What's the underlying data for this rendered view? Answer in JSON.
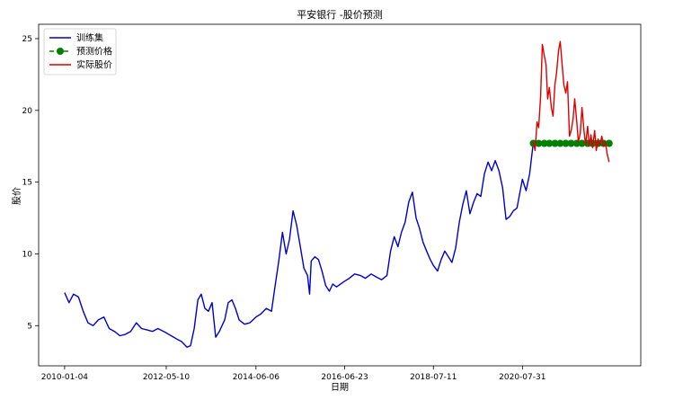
{
  "chart_data": {
    "type": "line",
    "title": "平安银行 -股价预测",
    "xlabel": "日期",
    "ylabel": "股价",
    "x_tick_labels": [
      "2010-01-04",
      "2012-05-10",
      "2014-06-06",
      "2016-06-23",
      "2018-07-11",
      "2020-07-31"
    ],
    "y_ticks": [
      5,
      10,
      15,
      20,
      25
    ],
    "xlim": [
      "2009-05-30",
      "2023-04-25"
    ],
    "ylim": [
      2.2,
      26.0
    ],
    "grid": false,
    "legend_position": "top-left",
    "series": [
      {
        "name": "训练集",
        "color": "#0000cc",
        "style": "line",
        "points": [
          [
            "2010-01-04",
            7.3
          ],
          [
            "2010-02-10",
            6.6
          ],
          [
            "2010-03-20",
            7.2
          ],
          [
            "2010-05-01",
            7.0
          ],
          [
            "2010-06-10",
            6.0
          ],
          [
            "2010-07-20",
            5.2
          ],
          [
            "2010-09-01",
            5.0
          ],
          [
            "2010-10-15",
            5.4
          ],
          [
            "2010-12-01",
            5.6
          ],
          [
            "2011-01-15",
            4.8
          ],
          [
            "2011-03-01",
            4.6
          ],
          [
            "2011-04-15",
            4.3
          ],
          [
            "2011-06-01",
            4.4
          ],
          [
            "2011-07-15",
            4.6
          ],
          [
            "2011-09-01",
            5.2
          ],
          [
            "2011-10-15",
            4.8
          ],
          [
            "2011-12-01",
            4.7
          ],
          [
            "2012-01-15",
            4.6
          ],
          [
            "2012-03-01",
            4.8
          ],
          [
            "2012-05-10",
            4.5
          ],
          [
            "2012-06-20",
            4.3
          ],
          [
            "2012-08-01",
            4.1
          ],
          [
            "2012-09-15",
            3.9
          ],
          [
            "2012-11-01",
            3.5
          ],
          [
            "2012-12-01",
            3.6
          ],
          [
            "2013-01-01",
            4.8
          ],
          [
            "2013-02-01",
            6.8
          ],
          [
            "2013-03-01",
            7.2
          ],
          [
            "2013-04-01",
            6.2
          ],
          [
            "2013-05-01",
            6.0
          ],
          [
            "2013-06-01",
            6.6
          ],
          [
            "2013-07-01",
            4.2
          ],
          [
            "2013-08-01",
            4.6
          ],
          [
            "2013-09-15",
            5.4
          ],
          [
            "2013-10-15",
            6.6
          ],
          [
            "2013-11-15",
            6.8
          ],
          [
            "2013-12-15",
            6.2
          ],
          [
            "2014-01-15",
            5.4
          ],
          [
            "2014-03-01",
            5.1
          ],
          [
            "2014-04-15",
            5.2
          ],
          [
            "2014-06-06",
            5.6
          ],
          [
            "2014-07-15",
            5.8
          ],
          [
            "2014-09-01",
            6.2
          ],
          [
            "2014-10-15",
            6.0
          ],
          [
            "2014-11-15",
            7.8
          ],
          [
            "2014-12-15",
            9.5
          ],
          [
            "2015-01-15",
            11.5
          ],
          [
            "2015-02-15",
            10.0
          ],
          [
            "2015-03-15",
            11.0
          ],
          [
            "2015-04-15",
            13.0
          ],
          [
            "2015-05-15",
            12.0
          ],
          [
            "2015-06-15",
            10.5
          ],
          [
            "2015-07-15",
            9.0
          ],
          [
            "2015-08-15",
            8.5
          ],
          [
            "2015-09-01",
            7.2
          ],
          [
            "2015-09-15",
            9.5
          ],
          [
            "2015-10-15",
            9.8
          ],
          [
            "2015-11-15",
            9.6
          ],
          [
            "2015-12-15",
            8.8
          ],
          [
            "2016-01-15",
            7.8
          ],
          [
            "2016-02-15",
            7.4
          ],
          [
            "2016-03-15",
            7.9
          ],
          [
            "2016-04-15",
            7.7
          ],
          [
            "2016-06-23",
            8.1
          ],
          [
            "2016-08-01",
            8.3
          ],
          [
            "2016-09-15",
            8.6
          ],
          [
            "2016-11-01",
            8.5
          ],
          [
            "2016-12-15",
            8.3
          ],
          [
            "2017-02-01",
            8.6
          ],
          [
            "2017-03-15",
            8.4
          ],
          [
            "2017-05-01",
            8.2
          ],
          [
            "2017-06-15",
            8.5
          ],
          [
            "2017-07-15",
            10.2
          ],
          [
            "2017-08-15",
            11.2
          ],
          [
            "2017-09-15",
            10.5
          ],
          [
            "2017-10-15",
            11.5
          ],
          [
            "2017-11-15",
            12.2
          ],
          [
            "2017-12-15",
            13.6
          ],
          [
            "2018-01-15",
            14.3
          ],
          [
            "2018-02-15",
            12.5
          ],
          [
            "2018-03-15",
            11.8
          ],
          [
            "2018-04-15",
            10.8
          ],
          [
            "2018-05-15",
            10.2
          ],
          [
            "2018-06-15",
            9.6
          ],
          [
            "2018-07-11",
            9.2
          ],
          [
            "2018-08-15",
            8.8
          ],
          [
            "2018-09-15",
            9.6
          ],
          [
            "2018-10-15",
            10.2
          ],
          [
            "2018-11-15",
            9.8
          ],
          [
            "2018-12-15",
            9.4
          ],
          [
            "2019-01-15",
            10.4
          ],
          [
            "2019-02-15",
            12.2
          ],
          [
            "2019-03-15",
            13.4
          ],
          [
            "2019-04-15",
            14.4
          ],
          [
            "2019-05-15",
            12.8
          ],
          [
            "2019-06-15",
            13.6
          ],
          [
            "2019-07-15",
            14.2
          ],
          [
            "2019-08-15",
            14.0
          ],
          [
            "2019-09-15",
            15.6
          ],
          [
            "2019-10-15",
            16.4
          ],
          [
            "2019-11-15",
            15.8
          ],
          [
            "2019-12-15",
            16.5
          ],
          [
            "2020-01-15",
            15.8
          ],
          [
            "2020-02-15",
            14.6
          ],
          [
            "2020-03-15",
            12.4
          ],
          [
            "2020-04-15",
            12.6
          ],
          [
            "2020-05-15",
            13.0
          ],
          [
            "2020-06-15",
            13.2
          ],
          [
            "2020-07-31",
            15.2
          ],
          [
            "2020-08-31",
            14.4
          ],
          [
            "2020-09-30",
            15.6
          ],
          [
            "2020-10-31",
            17.8
          ]
        ]
      },
      {
        "name": "预测价格",
        "color": "#008000",
        "style": "dashed-line-with-circle-markers",
        "points": [
          [
            "2020-10-31",
            17.7
          ],
          [
            "2020-12-15",
            17.7
          ],
          [
            "2021-02-01",
            17.7
          ],
          [
            "2021-03-15",
            17.7
          ],
          [
            "2021-05-01",
            17.7
          ],
          [
            "2021-06-15",
            17.7
          ],
          [
            "2021-08-01",
            17.7
          ],
          [
            "2021-09-15",
            17.7
          ],
          [
            "2021-11-01",
            17.7
          ],
          [
            "2021-12-15",
            17.7
          ],
          [
            "2022-02-01",
            17.7
          ],
          [
            "2022-03-15",
            17.7
          ],
          [
            "2022-05-01",
            17.7
          ],
          [
            "2022-06-15",
            17.7
          ],
          [
            "2022-08-01",
            17.7
          ]
        ]
      },
      {
        "name": "实际股价",
        "color": "#dd0000",
        "style": "line",
        "points": [
          [
            "2020-10-31",
            17.8
          ],
          [
            "2020-11-15",
            17.2
          ],
          [
            "2020-12-01",
            19.2
          ],
          [
            "2020-12-15",
            18.8
          ],
          [
            "2021-01-01",
            21.0
          ],
          [
            "2021-01-15",
            24.6
          ],
          [
            "2021-02-01",
            23.8
          ],
          [
            "2021-02-15",
            23.2
          ],
          [
            "2021-03-01",
            20.8
          ],
          [
            "2021-03-15",
            21.6
          ],
          [
            "2021-04-01",
            20.2
          ],
          [
            "2021-04-15",
            19.6
          ],
          [
            "2021-05-01",
            21.8
          ],
          [
            "2021-05-15",
            22.6
          ],
          [
            "2021-06-01",
            24.2
          ],
          [
            "2021-06-15",
            24.8
          ],
          [
            "2021-07-01",
            23.2
          ],
          [
            "2021-07-15",
            21.8
          ],
          [
            "2021-08-01",
            21.2
          ],
          [
            "2021-08-15",
            22.0
          ],
          [
            "2021-09-01",
            18.2
          ],
          [
            "2021-09-15",
            18.6
          ],
          [
            "2021-10-01",
            19.4
          ],
          [
            "2021-10-15",
            20.8
          ],
          [
            "2021-11-01",
            19.2
          ],
          [
            "2021-11-15",
            17.8
          ],
          [
            "2021-12-01",
            18.4
          ],
          [
            "2021-12-15",
            20.2
          ],
          [
            "2022-01-01",
            18.6
          ],
          [
            "2022-01-15",
            17.6
          ],
          [
            "2022-02-01",
            18.9
          ],
          [
            "2022-02-15",
            17.5
          ],
          [
            "2022-03-01",
            18.3
          ],
          [
            "2022-03-15",
            17.4
          ],
          [
            "2022-04-01",
            18.6
          ],
          [
            "2022-04-15",
            17.2
          ],
          [
            "2022-05-01",
            18.0
          ],
          [
            "2022-05-15",
            17.6
          ],
          [
            "2022-06-01",
            18.2
          ],
          [
            "2022-06-15",
            17.5
          ],
          [
            "2022-07-01",
            17.8
          ],
          [
            "2022-07-15",
            17.0
          ],
          [
            "2022-08-01",
            16.4
          ]
        ]
      }
    ]
  }
}
